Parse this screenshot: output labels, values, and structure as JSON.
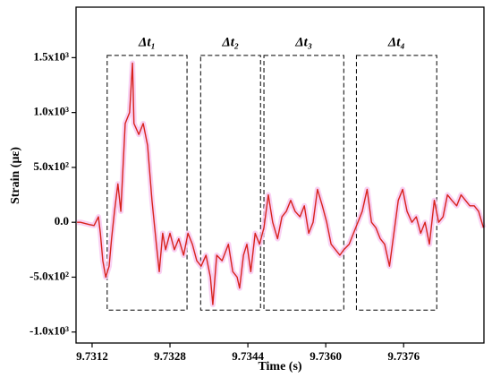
{
  "chart_data": {
    "type": "line",
    "x_label": "Time (s)",
    "y_label": "Strain (με)",
    "color": "#d8231c",
    "halo_color": "#f7c6f0",
    "x": [
      9.73089,
      9.73096,
      9.73105,
      9.73114,
      9.73124,
      9.73133,
      9.73137,
      9.73142,
      9.73148,
      9.73155,
      9.7316,
      9.73166,
      9.73173,
      9.73179,
      9.73188,
      9.73197,
      9.73203,
      9.73206,
      9.73216,
      9.73225,
      9.73234,
      9.73243,
      9.73252,
      9.73258,
      9.73265,
      9.73271,
      9.7328,
      9.73289,
      9.73298,
      9.73308,
      9.73317,
      9.73326,
      9.73335,
      9.73344,
      9.73354,
      9.73363,
      9.73368,
      9.73376,
      9.73387,
      9.734,
      9.73409,
      9.73418,
      9.73423,
      9.73431,
      9.73438,
      9.73446,
      9.73455,
      9.73464,
      9.73473,
      9.73482,
      9.73491,
      9.73501,
      9.7351,
      9.73519,
      9.73528,
      9.73537,
      9.73547,
      9.73556,
      9.73565,
      9.73574,
      9.73583,
      9.73593,
      9.73602,
      9.73611,
      9.7362,
      9.73629,
      9.73637,
      9.73648,
      9.73657,
      9.73666,
      9.73675,
      9.73685,
      9.73694,
      9.73703,
      9.73712,
      9.73721,
      9.73731,
      9.7374,
      9.73749,
      9.73758,
      9.73767,
      9.73777,
      9.73786,
      9.73795,
      9.73804,
      9.73813,
      9.73823,
      9.73832,
      9.73841,
      9.7385,
      9.73859,
      9.73869,
      9.73878,
      9.73887,
      9.73896,
      9.73905,
      9.73914,
      9.73924
    ],
    "values": [
      0,
      0,
      -10,
      -20,
      -30,
      50,
      -100,
      -350,
      -500,
      -400,
      -150,
      100,
      350,
      100,
      900,
      1000,
      1450,
      900,
      800,
      900,
      700,
      200,
      -200,
      -450,
      -100,
      -250,
      -100,
      -250,
      -150,
      -300,
      -100,
      -200,
      -350,
      -400,
      -300,
      -500,
      -750,
      -300,
      -350,
      -200,
      -450,
      -500,
      -600,
      -300,
      -200,
      -450,
      -100,
      -200,
      -50,
      250,
      0,
      -150,
      50,
      100,
      200,
      100,
      50,
      150,
      -100,
      0,
      300,
      150,
      0,
      -200,
      -250,
      -300,
      -250,
      -200,
      -100,
      0,
      100,
      300,
      0,
      -50,
      -150,
      -200,
      -400,
      -100,
      200,
      300,
      100,
      0,
      50,
      -100,
      0,
      -200,
      200,
      0,
      50,
      250,
      200,
      150,
      250,
      200,
      150,
      150,
      100,
      -50
    ],
    "xlim": [
      9.73087,
      9.73925
    ],
    "ylim": [
      -1100,
      1960
    ],
    "xticks": [
      9.7312,
      9.7328,
      9.7344,
      {
        "value": 9.736,
        "label": "9.7360"
      },
      9.7376
    ],
    "yticks": [
      {
        "value": -1000,
        "label": "-1.0x10³"
      },
      {
        "value": -500,
        "label": "-5.0x10²"
      },
      {
        "value": 0,
        "label": "0.0"
      },
      {
        "value": 500,
        "label": "5.0x10²"
      },
      {
        "value": 1000,
        "label": "1.0x10³"
      },
      {
        "value": 1500,
        "label": "1.5x10³"
      }
    ],
    "intervals": [
      {
        "label": "Δt₁",
        "xlim": [
          9.73151,
          9.73315
        ],
        "ylim": [
          -800,
          1520
        ]
      },
      {
        "label": "Δt₂",
        "xlim": [
          9.73343,
          9.73466
        ],
        "ylim": [
          -800,
          1520
        ]
      },
      {
        "label": "Δt₃",
        "xlim": [
          9.73473,
          9.73637
        ],
        "ylim": [
          -800,
          1520
        ]
      },
      {
        "label": "Δt₄",
        "xlim": [
          9.73663,
          9.73828
        ],
        "ylim": [
          -800,
          1520
        ]
      }
    ]
  }
}
